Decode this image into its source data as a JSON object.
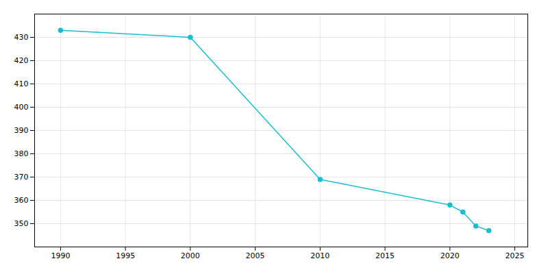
{
  "chart_data": {
    "type": "line",
    "x": [
      1990,
      2000,
      2010,
      2020,
      2021,
      2022,
      2023
    ],
    "values": [
      433,
      430,
      369,
      358,
      355,
      349,
      347
    ],
    "color": "#17BECF",
    "marker": "circle",
    "xlim": [
      1988,
      2026
    ],
    "ylim": [
      340,
      440
    ],
    "xticks": [
      1990,
      1995,
      2000,
      2005,
      2010,
      2015,
      2020,
      2025
    ],
    "yticks": [
      350,
      360,
      370,
      380,
      390,
      400,
      410,
      420,
      430
    ],
    "grid": true
  }
}
